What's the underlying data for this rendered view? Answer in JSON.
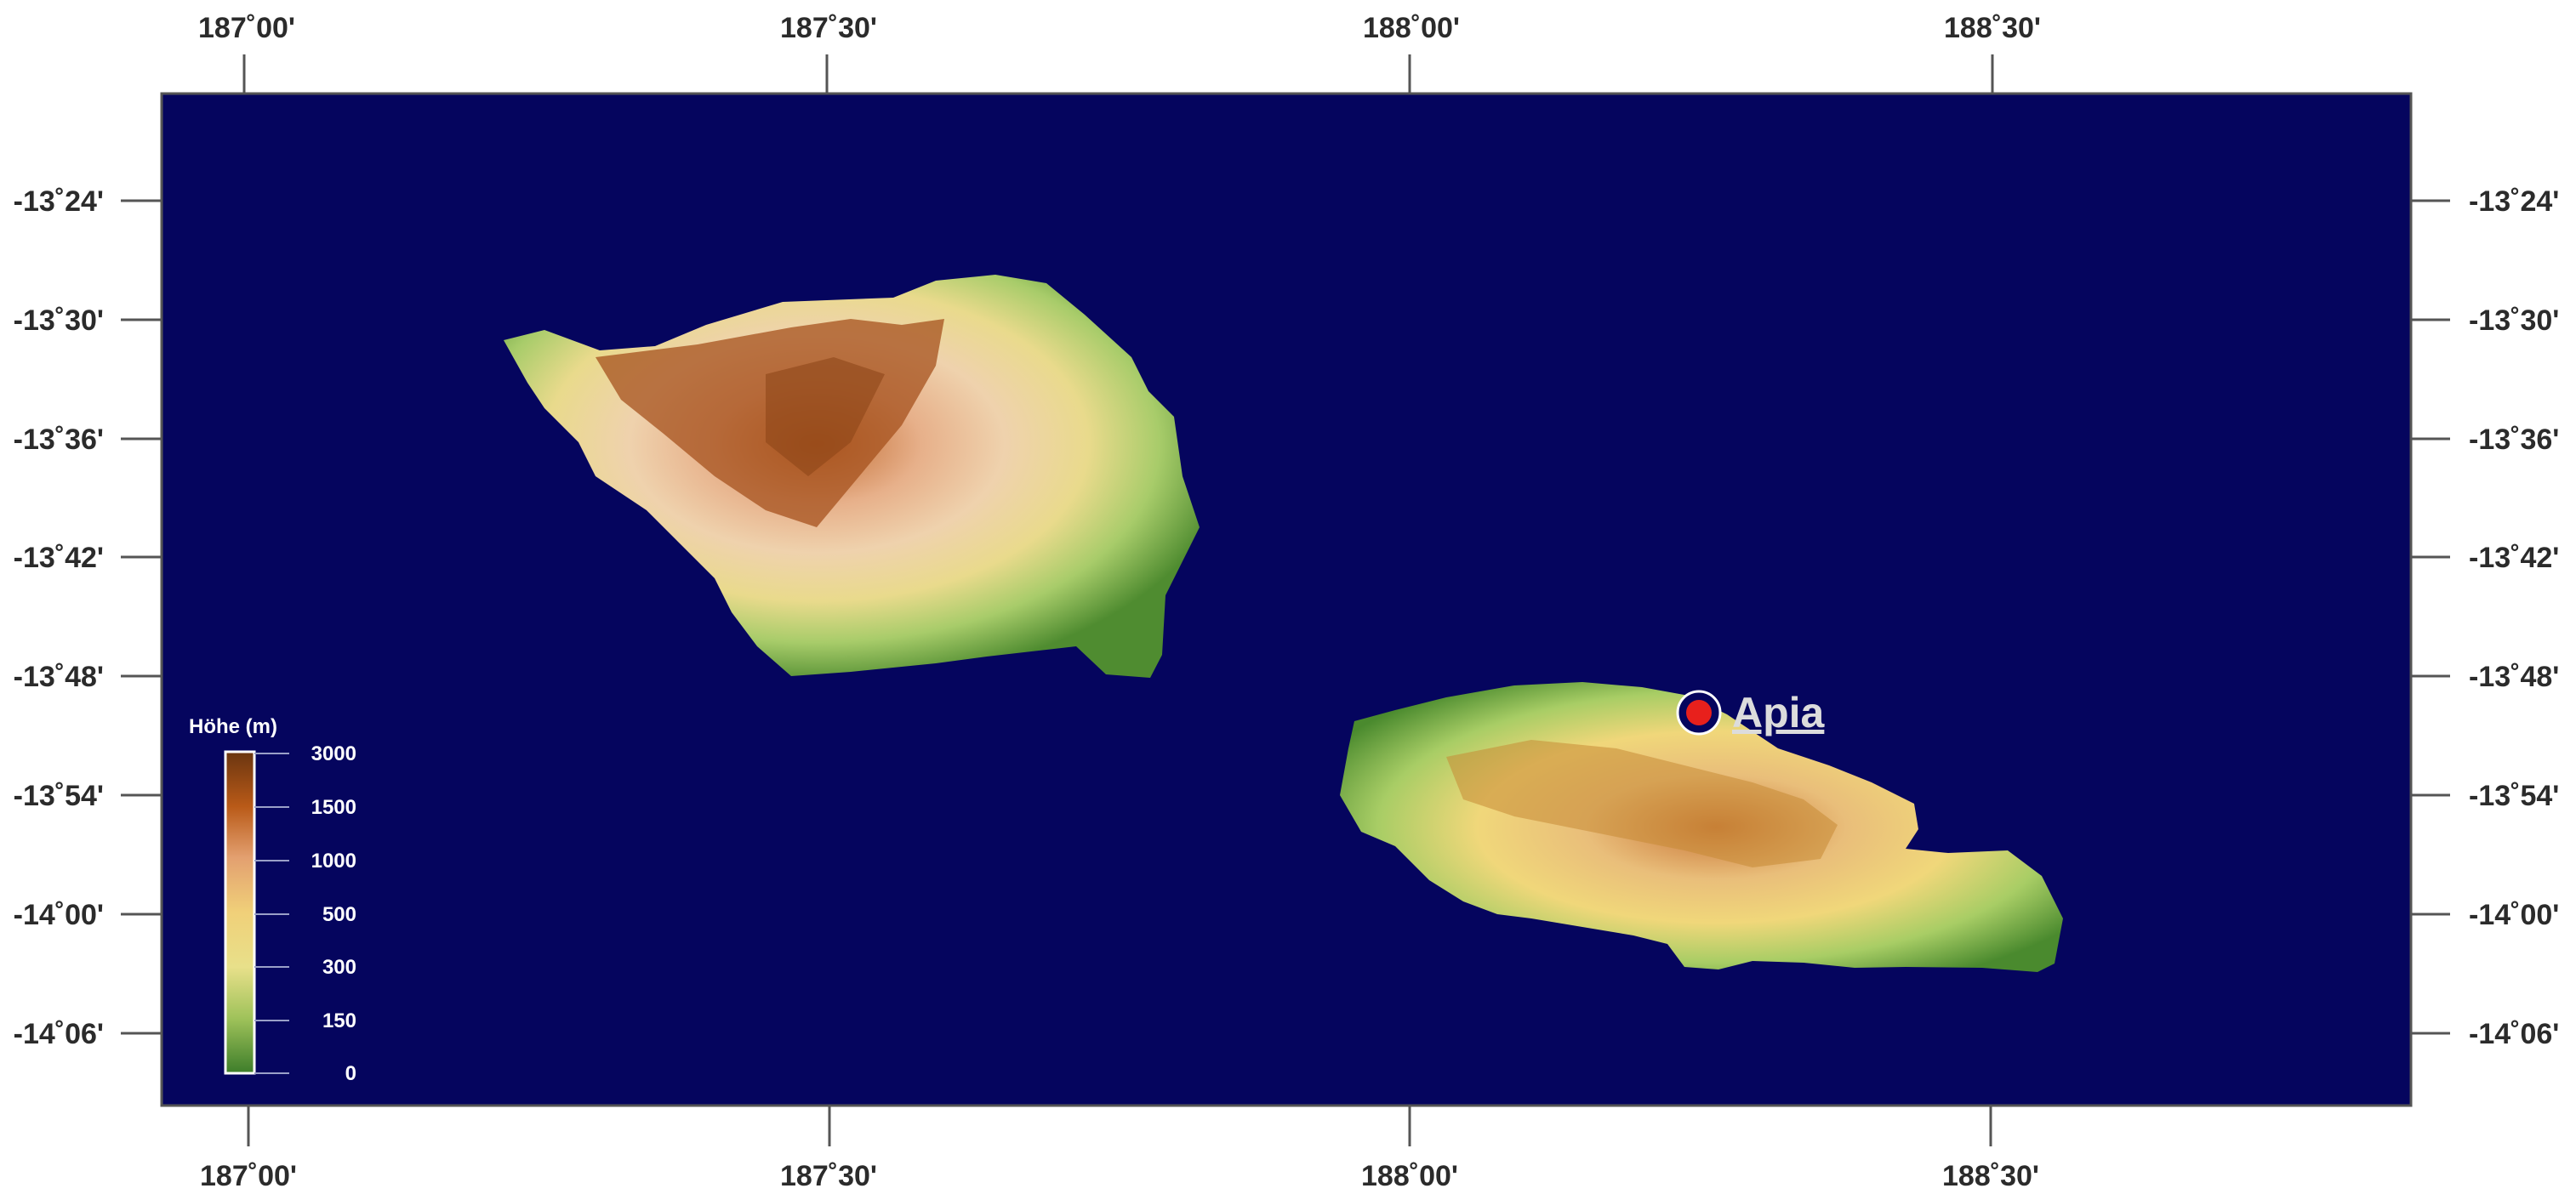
{
  "colors": {
    "ocean": "#05055e",
    "frame": "#555555",
    "tick": "#555555",
    "marker_fill": "#e8201c",
    "marker_ring": "#ffffff"
  },
  "axes": {
    "top_lon_labels": [
      "187˚00'",
      "187˚30'",
      "188˚00'",
      "188˚30'"
    ],
    "bottom_lon_labels": [
      "187˚00'",
      "187˚30'",
      "188˚00'",
      "188˚30'"
    ],
    "left_lat_labels": [
      "-13˚24'",
      "-13˚30'",
      "-13˚36'",
      "-13˚42'",
      "-13˚48'",
      "-13˚54'",
      "-14˚00'",
      "-14˚06'"
    ],
    "right_lat_labels": [
      "-13˚24'",
      "-13˚30'",
      "-13˚36'",
      "-13˚42'",
      "-13˚48'",
      "-13˚54'",
      "-14˚00'",
      "-14˚06'"
    ]
  },
  "legend": {
    "title": "Höhe  (m)",
    "labels": [
      "3000",
      "1500",
      "1000",
      "500",
      "300",
      "150",
      "0"
    ],
    "colors": [
      "#6a3510",
      "#b95a18",
      "#e3a070",
      "#f0d079",
      "#e8e08a",
      "#9fc25a",
      "#3d7d2a"
    ]
  },
  "places": [
    {
      "name": "Apia",
      "icon": "city-marker-icon"
    }
  ],
  "islands": [
    {
      "name_id": "savaii-island"
    },
    {
      "name_id": "upolu-island"
    }
  ]
}
